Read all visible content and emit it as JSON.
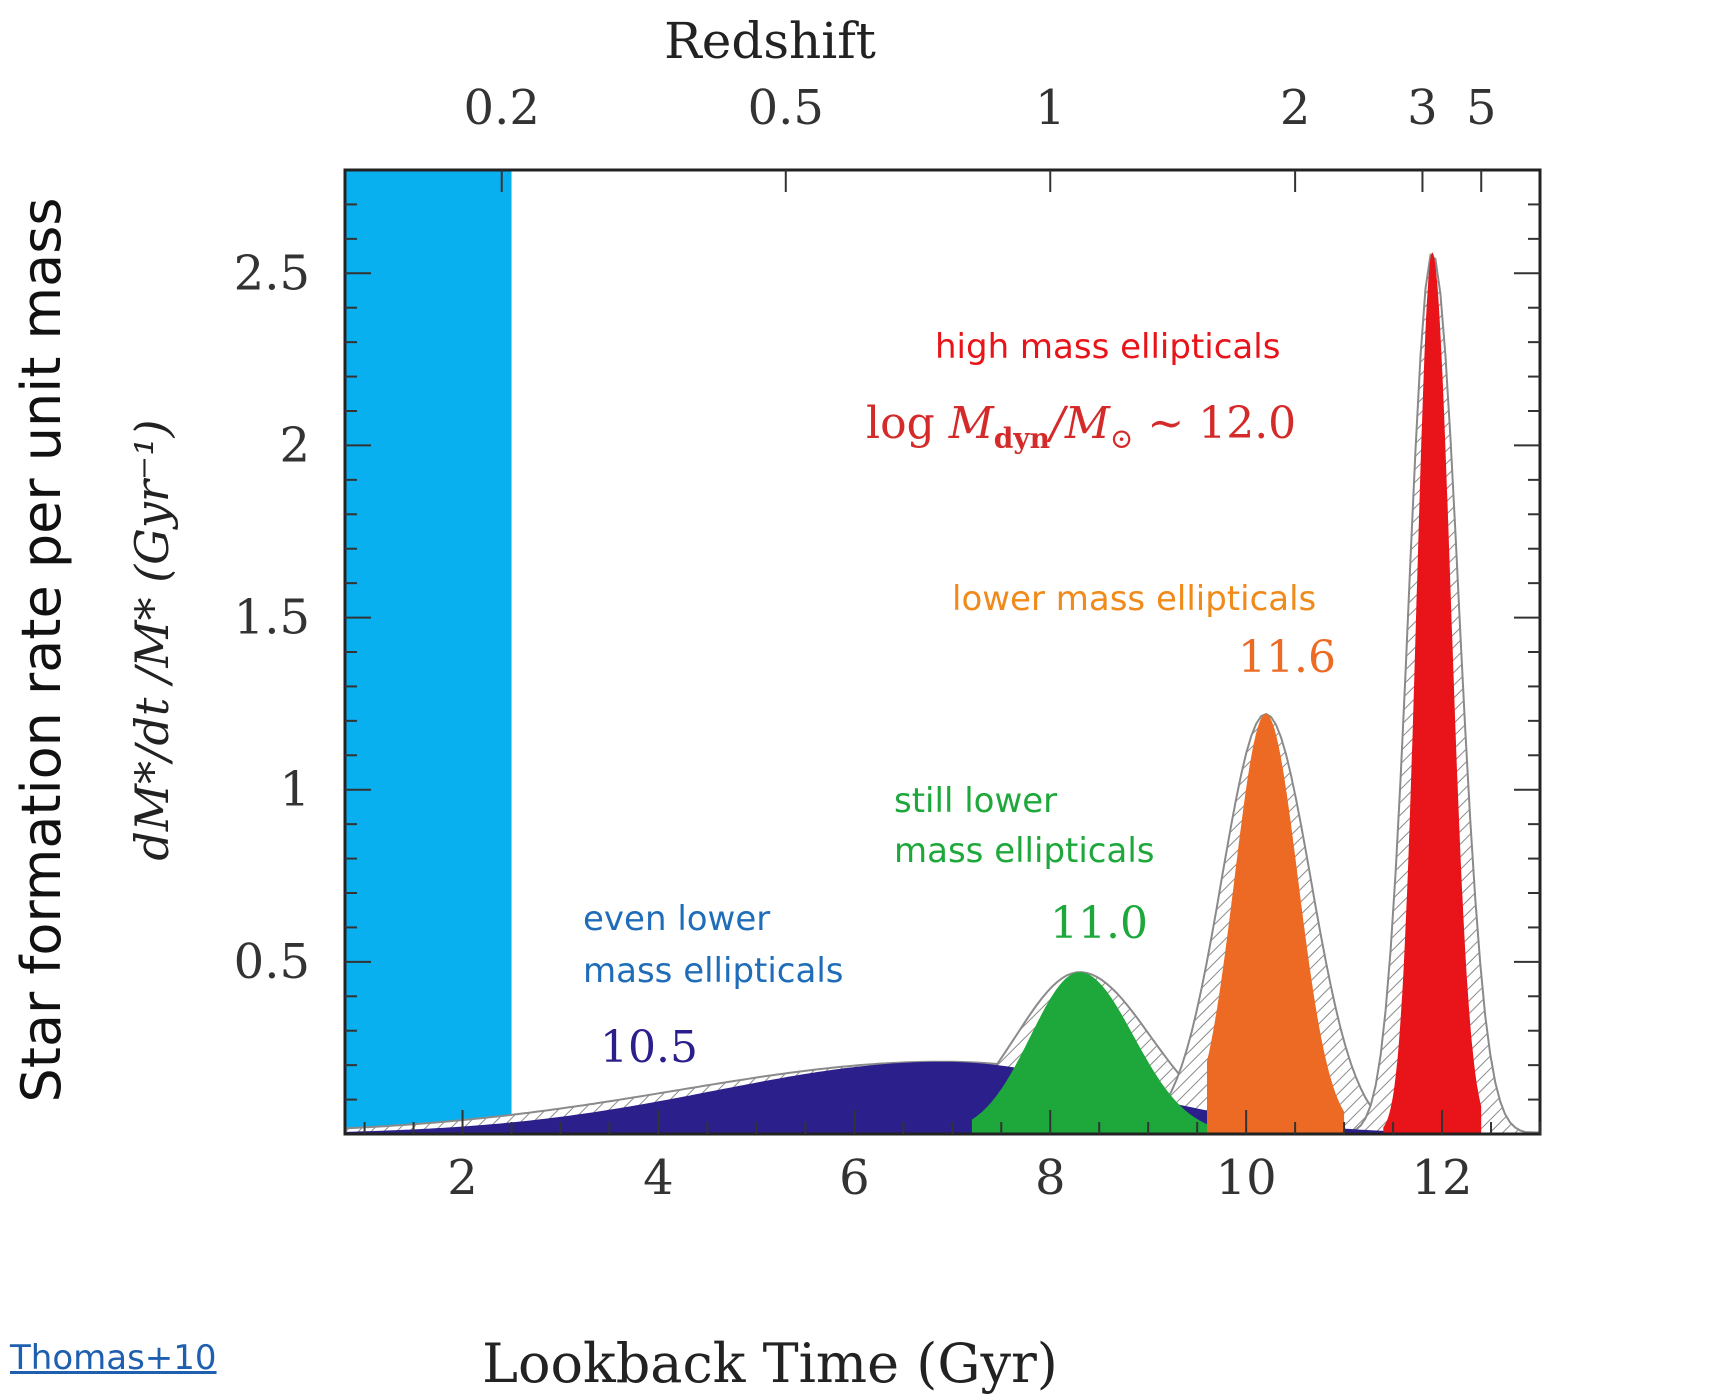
{
  "source_link": "Thomas+10",
  "annotations": {
    "high_mass": {
      "text": "high mass ellipticals",
      "color": "#e8141a"
    },
    "high_mass_value": {
      "prefix": "log ",
      "m": "M",
      "sub": "dyn",
      "slash": "/M",
      "sun": "⊙",
      "tail": " ~ 12.0",
      "color": "#d42a2a"
    },
    "lower_mass": {
      "text": "lower mass ellipticals",
      "color": "#f08a1a"
    },
    "lower_mass_value": {
      "text": "11.6",
      "color": "#ec6a24"
    },
    "still_lower_1": {
      "text": "still lower",
      "color": "#1ea83c"
    },
    "still_lower_2": {
      "text": "mass ellipticals",
      "color": "#1ea83c"
    },
    "still_lower_value": {
      "text": "11.0",
      "color": "#1ea83c"
    },
    "even_lower_1": {
      "text": "even lower",
      "color": "#1f6db8"
    },
    "even_lower_2": {
      "text": "mass ellipticals",
      "color": "#1f6db8"
    },
    "even_lower_value": {
      "text": "10.5",
      "color": "#2b1f8c"
    }
  },
  "outer_ylabel": "Star formation rate per unit mass",
  "chart_data": {
    "type": "area",
    "xlabel": "Lookback Time (Gyr)",
    "ylabel": "dM*/dt /M* (Gyr⁻¹)",
    "top_axis_label": "Redshift",
    "xlim": [
      0.8,
      13.0
    ],
    "ylim": [
      0,
      2.8
    ],
    "x_ticks": [
      2,
      4,
      6,
      8,
      10,
      12
    ],
    "x_tick_labels": [
      "2",
      "4",
      "6",
      "8",
      "10",
      "12"
    ],
    "y_ticks": [
      0.5,
      1,
      1.5,
      2,
      2.5
    ],
    "y_tick_labels": [
      "0.5",
      "1",
      "1.5",
      "2",
      "2.5"
    ],
    "top_ticks": [
      {
        "label": "0.2",
        "x": 2.4
      },
      {
        "label": "0.5",
        "x": 5.3
      },
      {
        "label": "1",
        "x": 8.0
      },
      {
        "label": "2",
        "x": 10.5
      },
      {
        "label": "3",
        "x": 11.8
      },
      {
        "label": "5",
        "x": 12.4
      }
    ],
    "shaded_region": {
      "x_range": [
        0.8,
        2.5
      ],
      "color": "#08b0f0"
    },
    "series": [
      {
        "name": "10.5",
        "color": "#2b1f8c",
        "peak_x": 6.9,
        "peak_y": 0.21,
        "sigma_left": 2.3,
        "sigma_right": 1.8,
        "band_left": 2.7,
        "band_right": 2.2,
        "x_range": [
          0.8,
          13.0
        ]
      },
      {
        "name": "11.0",
        "color": "#1ea83c",
        "peak_x": 8.3,
        "peak_y": 0.47,
        "sigma_left": 0.5,
        "sigma_right": 0.55,
        "band_left": 0.65,
        "band_right": 0.72,
        "x_range": [
          7.2,
          9.6
        ]
      },
      {
        "name": "11.6",
        "color": "#ec6a24",
        "peak_x": 10.2,
        "peak_y": 1.22,
        "sigma_left": 0.32,
        "sigma_right": 0.33,
        "band_left": 0.45,
        "band_right": 0.46,
        "x_range": [
          9.6,
          11.0
        ]
      },
      {
        "name": "12.0",
        "color": "#e8141a",
        "peak_x": 11.9,
        "peak_y": 2.56,
        "sigma_left": 0.16,
        "sigma_right": 0.19,
        "band_left": 0.24,
        "band_right": 0.27,
        "x_range": [
          11.4,
          12.4
        ]
      }
    ]
  }
}
